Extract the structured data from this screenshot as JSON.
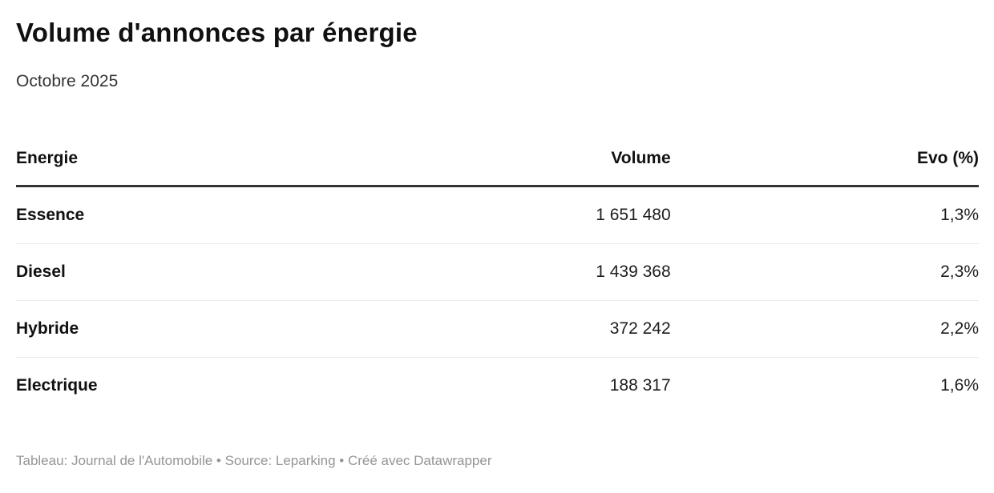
{
  "header": {
    "title": "Volume d'annonces par énergie",
    "subtitle": "Octobre 2025"
  },
  "table": {
    "columns": [
      {
        "label": "Energie",
        "align": "left"
      },
      {
        "label": "Volume",
        "align": "right"
      },
      {
        "label": "Evo (%)",
        "align": "right"
      }
    ],
    "rows": [
      {
        "energie": "Essence",
        "volume": "1 651 480",
        "evo": "1,3%"
      },
      {
        "energie": "Diesel",
        "volume": "1 439 368",
        "evo": "2,3%"
      },
      {
        "energie": "Hybride",
        "volume": "372 242",
        "evo": "2,2%"
      },
      {
        "energie": "Electrique",
        "volume": "188 317",
        "evo": "1,6%"
      }
    ]
  },
  "footer": {
    "text": "Tableau: Journal de l'Automobile • Source: Leparking • Créé avec Datawrapper"
  },
  "colors": {
    "title_text": "#111111",
    "subtitle_text": "#333333",
    "header_border": "#333333",
    "row_divider": "#ebebeb",
    "footer_text": "#959595",
    "background": "#ffffff"
  },
  "chart_data": {
    "type": "table",
    "title": "Volume d'annonces par énergie",
    "subtitle": "Octobre 2025",
    "columns": [
      "Energie",
      "Volume",
      "Evo (%)"
    ],
    "categories": [
      "Essence",
      "Diesel",
      "Hybride",
      "Electrique"
    ],
    "series": [
      {
        "name": "Volume",
        "values": [
          1651480,
          1439368,
          372242,
          188317
        ]
      },
      {
        "name": "Evo (%)",
        "values": [
          1.3,
          2.3,
          2.2,
          1.6
        ]
      }
    ],
    "notes": "Values displayed with French formatting: space thousands separator, comma decimal separator",
    "source": "Leparking",
    "credit": "Journal de l'Automobile",
    "tool": "Datawrapper"
  }
}
